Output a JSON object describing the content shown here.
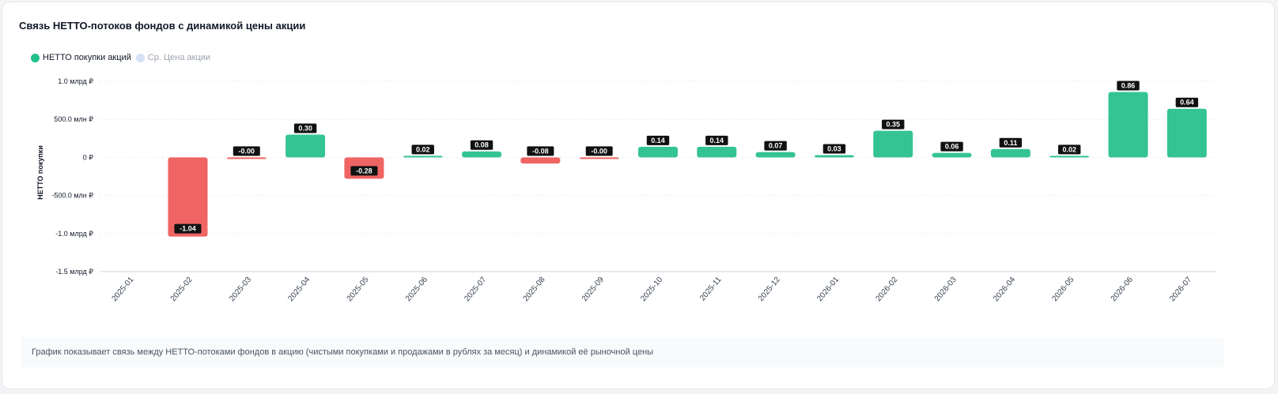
{
  "title": "Связь НЕТТО-потоков фондов с динамикой цены акции",
  "legend": [
    {
      "label": "НЕТТО покупки акций",
      "color": "#22c08a",
      "active": true
    },
    {
      "label": "Ср. Цена акции",
      "color": "#d6e2f5",
      "active": false
    }
  ],
  "note": "График показывает связь между НЕТТО-потоками фондов в акцию (чистыми покупками и продажами в рублях за месяц) и динамикой её рыночной цены",
  "chart_data": {
    "type": "bar",
    "title": "Связь НЕТТО-потоков фондов с динамикой цены акции",
    "ylabel": "НЕТТО покупки",
    "xlabel": "",
    "ylim": [
      -1.5,
      1.0
    ],
    "unit": "млрд ₽",
    "yticks": [
      {
        "value": 1.0,
        "label": "1.0 млрд ₽"
      },
      {
        "value": 0.5,
        "label": "500.0 млн ₽"
      },
      {
        "value": 0,
        "label": "0 ₽"
      },
      {
        "value": -0.5,
        "label": "-500.0 млн ₽"
      },
      {
        "value": -1.0,
        "label": "-1.0 млрд ₽"
      },
      {
        "value": -1.5,
        "label": "-1.5 млрд ₽"
      }
    ],
    "categories": [
      "2025-01",
      "2025-02",
      "2025-03",
      "2025-04",
      "2025-05",
      "2025-06",
      "2025-07",
      "2025-08",
      "2025-09",
      "2025-10",
      "2025-11",
      "2025-12",
      "2026-01",
      "2026-02",
      "2026-03",
      "2026-04",
      "2026-05",
      "2026-06",
      "2026-07"
    ],
    "values": [
      null,
      -1.04,
      -0.001,
      0.3,
      -0.28,
      0.02,
      0.08,
      -0.08,
      -0.001,
      0.14,
      0.14,
      0.07,
      0.03,
      0.35,
      0.06,
      0.11,
      0.02,
      0.86,
      0.64
    ],
    "data_labels": [
      null,
      "-1.04",
      "-0.00",
      "0.30",
      "-0.28",
      "0.02",
      "0.08",
      "-0.08",
      "-0.00",
      "0.14",
      "0.14",
      "0.07",
      "0.03",
      "0.35",
      "0.06",
      "0.11",
      "0.02",
      "0.86",
      "0.64"
    ],
    "colors": {
      "positive": "#34c493",
      "negative": "#f06464",
      "grid": "#eceff3",
      "axis": "#d1d5db",
      "label_bg": "#111111"
    },
    "grid": true,
    "legend_position": "top-left"
  }
}
